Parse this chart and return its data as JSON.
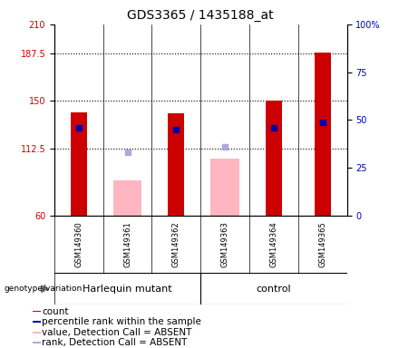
{
  "title": "GDS3365 / 1435188_at",
  "samples": [
    "GSM149360",
    "GSM149361",
    "GSM149362",
    "GSM149363",
    "GSM149364",
    "GSM149365"
  ],
  "group_labels": [
    "Harlequin mutant",
    "control"
  ],
  "count_values": [
    141,
    null,
    140,
    null,
    150,
    188
  ],
  "count_color": "#CC0000",
  "absent_value_values": [
    null,
    88,
    null,
    105,
    null,
    null
  ],
  "absent_value_color": "#FFB6C1",
  "percentile_values": [
    46,
    null,
    45,
    null,
    46,
    49
  ],
  "percentile_color": "#0000AA",
  "absent_rank_values": [
    null,
    33,
    null,
    36,
    null,
    null
  ],
  "absent_rank_color": "#AAAADD",
  "ylim_left": [
    60,
    210
  ],
  "ylim_right": [
    0,
    100
  ],
  "yticks_left": [
    60,
    112.5,
    150,
    187.5,
    210
  ],
  "yticks_right": [
    0,
    25,
    50,
    75,
    100
  ],
  "ytick_labels_left": [
    "60",
    "112.5",
    "150",
    "187.5",
    "210"
  ],
  "ytick_labels_right": [
    "0",
    "25",
    "50",
    "75",
    "100%"
  ],
  "hlines": [
    112.5,
    150,
    187.5
  ],
  "title_fontsize": 10,
  "tick_fontsize": 7,
  "sample_fontsize": 6,
  "legend_fontsize": 7.5,
  "bg_color": "#ffffff",
  "plot_bg_color": "#ffffff",
  "label_area_color": "#d3d3d3",
  "geno_color": "#66ff66",
  "legend_items": [
    {
      "label": "count",
      "color": "#CC0000"
    },
    {
      "label": "percentile rank within the sample",
      "color": "#0000AA"
    },
    {
      "label": "value, Detection Call = ABSENT",
      "color": "#FFB6C1"
    },
    {
      "label": "rank, Detection Call = ABSENT",
      "color": "#AAAADD"
    }
  ]
}
